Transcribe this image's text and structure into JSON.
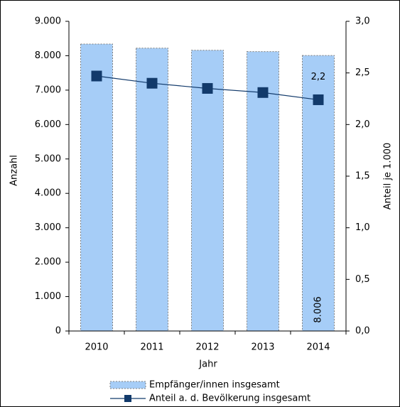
{
  "chart_data": {
    "type": "bar",
    "categories": [
      "2010",
      "2011",
      "2012",
      "2013",
      "2014"
    ],
    "series": [
      {
        "name": "Empfänger/innen insgesamt",
        "type": "bar",
        "color": "#a6cdf7",
        "values": [
          8340,
          8220,
          8160,
          8120,
          8006
        ],
        "value_labels": [
          null,
          null,
          null,
          null,
          "8.006"
        ]
      },
      {
        "name": "Anteil a. d. Bevölkerung insgesamt",
        "type": "line",
        "axis": "y2",
        "color": "#123a6b",
        "values": [
          2.47,
          2.4,
          2.35,
          2.31,
          2.24
        ],
        "value_labels": [
          null,
          null,
          null,
          null,
          "2,2"
        ]
      }
    ],
    "x_label": "Jahr",
    "y_label": "Anzahl",
    "y2_label": "Anteil je 1.000",
    "ylim": [
      0,
      9000
    ],
    "yticks": [
      0,
      {
        "value": 1000,
        "label": "1.000"
      },
      {
        "value": 2000,
        "label": "2.000"
      },
      {
        "value": 3000,
        "label": "3.000"
      },
      {
        "value": 4000,
        "label": "4.000"
      },
      {
        "value": 5000,
        "label": "5.000"
      },
      {
        "value": 6000,
        "label": "6.000"
      },
      {
        "value": 7000,
        "label": "7.000"
      },
      {
        "value": 8000,
        "label": "8.000"
      },
      {
        "value": 9000,
        "label": "9.000"
      }
    ],
    "y2lim": [
      0,
      3
    ],
    "y2ticks": [
      {
        "value": 0,
        "label": "0,0"
      },
      {
        "value": 0.5,
        "label": "0,5"
      },
      {
        "value": 1,
        "label": "1,0"
      },
      {
        "value": 1.5,
        "label": "1,5"
      },
      {
        "value": 2,
        "label": "2,0"
      },
      {
        "value": 2.5,
        "label": "2,5"
      },
      {
        "value": 3,
        "label": "3,0"
      }
    ],
    "legend": "bottom"
  }
}
